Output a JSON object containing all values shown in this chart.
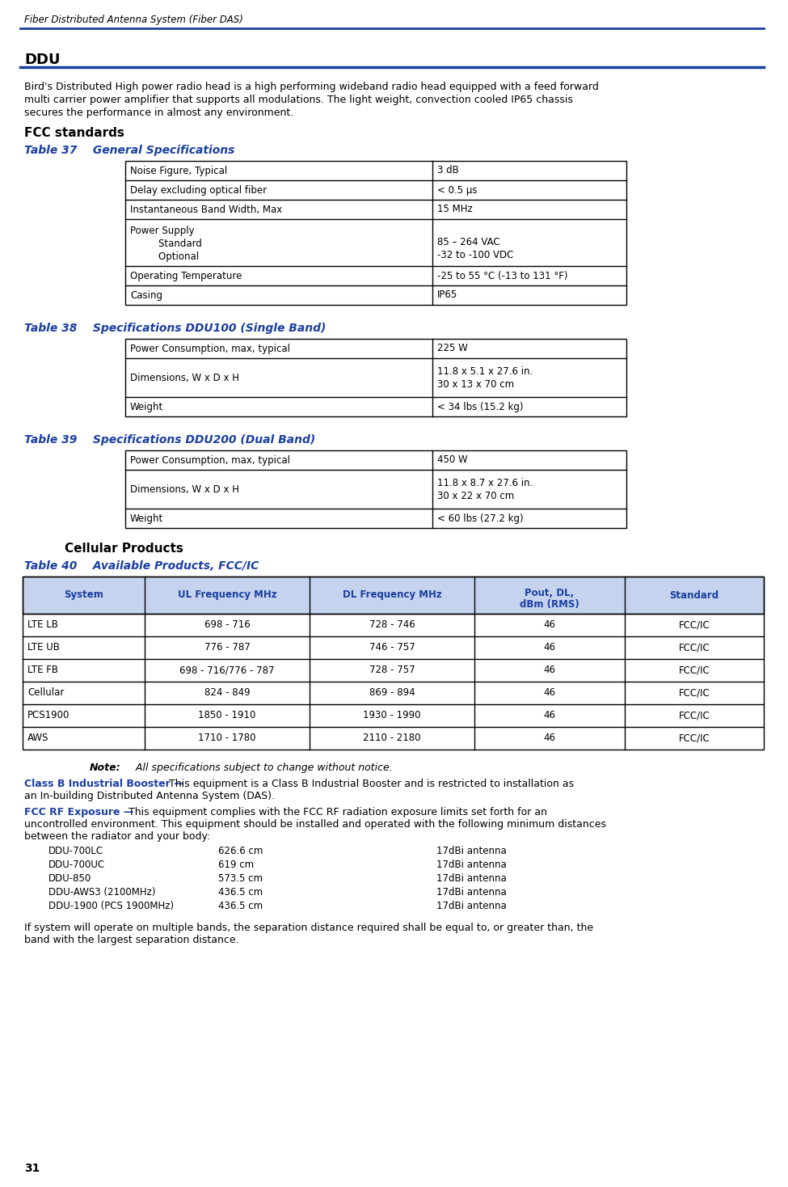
{
  "header_text": "Fiber Distributed Antenna System (Fiber DAS)",
  "page_number": "31",
  "section_title": "DDU",
  "intro_text": "Bird's Distributed High power radio head is a high performing wideband radio head equipped with a feed forward\nmulti carrier power amplifier that supports all modulations. The light weight, convection cooled IP65 chassis\nsecures the performance in almost any environment.",
  "fcc_standards_title": "FCC standards",
  "table37_title": "Table 37    General Specifications",
  "table37_data": [
    [
      "Noise Figure, Typical",
      "3 dB"
    ],
    [
      "Delay excluding optical fiber",
      "< 0.5 μs"
    ],
    [
      "Instantaneous Band Width, Max",
      "15 MHz"
    ],
    [
      "Power Supply\n    Standard\n    Optional",
      "85 – 264 VAC\n-32 to -100 VDC"
    ],
    [
      "Operating Temperature",
      "-25 to 55 °C (-13 to 131 °F)"
    ],
    [
      "Casing",
      "IP65"
    ]
  ],
  "table38_title": "Table 38    Specifications DDU100 (Single Band)",
  "table38_data": [
    [
      "Power Consumption, max, typical",
      "225 W"
    ],
    [
      "Dimensions, W x D x H",
      "11.8 x 5.1 x 27.6 in.\n30 x 13 x 70 cm"
    ],
    [
      "Weight",
      "< 34 lbs (15.2 kg)"
    ]
  ],
  "table39_title": "Table 39    Specifications DDU200 (Dual Band)",
  "table39_data": [
    [
      "Power Consumption, max, typical",
      "450 W"
    ],
    [
      "Dimensions, W x D x H",
      "11.8 x 8.7 x 27.6 in.\n30 x 22 x 70 cm"
    ],
    [
      "Weight",
      "< 60 lbs (27.2 kg)"
    ]
  ],
  "cellular_products_title": "Cellular Products",
  "table40_title": "Table 40    Available Products, FCC/IC",
  "table40_headers": [
    "System",
    "UL Frequency MHz",
    "DL Frequency MHz",
    "Pout, DL,\ndBm (RMS)",
    "Standard"
  ],
  "table40_data": [
    [
      "LTE LB",
      "698 - 716",
      "728 - 746",
      "46",
      "FCC/IC"
    ],
    [
      "LTE UB",
      "776 - 787",
      "746 - 757",
      "46",
      "FCC/IC"
    ],
    [
      "LTE FB",
      "698 - 716/776 - 787",
      "728 - 757",
      "46",
      "FCC/IC"
    ],
    [
      "Cellular",
      "824 - 849",
      "869 - 894",
      "46",
      "FCC/IC"
    ],
    [
      "PCS1900",
      "1850 - 1910",
      "1930 - 1990",
      "46",
      "FCC/IC"
    ],
    [
      "AWS",
      "1710 - 1780",
      "2110 - 2180",
      "46",
      "FCC/IC"
    ]
  ],
  "note_bold": "Note:",
  "note_italic": "  All specifications subject to change without notice.",
  "class_b_title": "Class B Industrial Booster —",
  "class_b_line1": " This equipment is a Class B Industrial Booster and is restricted to installation as",
  "class_b_line2": "an In-building Distributed Antenna System (DAS).",
  "fcc_rf_title": "FCC RF Exposure —",
  "fcc_rf_line1": " This equipment complies with the FCC RF radiation exposure limits set forth for an",
  "fcc_rf_line2": "uncontrolled environment. This equipment should be installed and operated with the following minimum distances",
  "fcc_rf_line3": "between the radiator and your body:",
  "antenna_data": [
    [
      "DDU-700LC",
      "626.6 cm",
      "17dBi antenna"
    ],
    [
      "DDU-700UC",
      "619 cm",
      "17dBi antenna"
    ],
    [
      "DDU-850",
      "573.5 cm",
      "17dBi antenna"
    ],
    [
      "DDU-AWS3 (2100MHz)",
      "436.5 cm",
      "17dBi antenna"
    ],
    [
      "DDU-1900 (PCS 1900MHz)",
      "436.5 cm",
      "17dBi antenna"
    ]
  ],
  "footer_line1": "If system will operate on multiple bands, the separation distance required shall be equal to, or greater than, the",
  "footer_line2": "band with the largest separation distance.",
  "blue_color": "#1B3FA0",
  "line_blue": "#1B3FA0",
  "header_line_color": "#1B3FA0",
  "bg_white": "#ffffff",
  "table_header_bg": "#C5D3EE"
}
